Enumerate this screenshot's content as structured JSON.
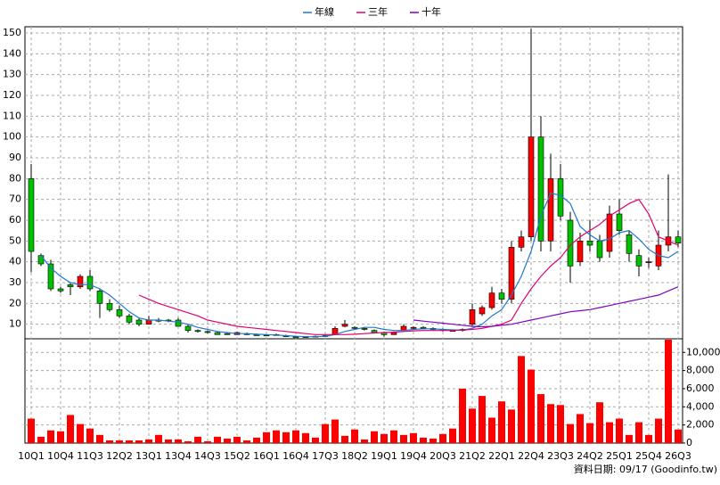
{
  "chart_data": [
    {
      "type": "candlestick",
      "categories": [
        "10Q1",
        null,
        null,
        "10Q4",
        null,
        null,
        "11Q3",
        null,
        null,
        "12Q2",
        null,
        null,
        "13Q1",
        null,
        null,
        "13Q4",
        null,
        null,
        "14Q3",
        null,
        null,
        "15Q2",
        null,
        null,
        "16Q1",
        null,
        null,
        "16Q4",
        null,
        null,
        "17Q3",
        null,
        null,
        "18Q2",
        null,
        null,
        "19Q1",
        null,
        null,
        "19Q4",
        null,
        null,
        "20Q3",
        null,
        null,
        "21Q2",
        null,
        null,
        "22Q1",
        null,
        null,
        "22Q4",
        null,
        null,
        "23Q3",
        null,
        null,
        "24Q2",
        null,
        null,
        "25Q1",
        null,
        null,
        "25Q4",
        null,
        null,
        "26Q3"
      ],
      "open": [
        80,
        43,
        39,
        27,
        29,
        28,
        33,
        26,
        20,
        17,
        14,
        12,
        10,
        12,
        12,
        12,
        9,
        7,
        6.5,
        6,
        5.5,
        5,
        5.5,
        5,
        4.8,
        5,
        4.5,
        4,
        4,
        4,
        4.2,
        5,
        9,
        8.5,
        8,
        7,
        6,
        5,
        7,
        8,
        8.5,
        8,
        7.5,
        7,
        7,
        10,
        15,
        18,
        25,
        22,
        47,
        52,
        100,
        50,
        80,
        60,
        40,
        50,
        50,
        45,
        63,
        53,
        43,
        40,
        38,
        48,
        52
      ],
      "high": [
        87,
        44,
        41,
        28,
        30,
        34,
        36,
        27,
        22,
        19,
        15,
        13,
        14,
        13,
        12.5,
        13,
        10,
        7.5,
        7,
        6.5,
        6,
        6.5,
        6,
        5.5,
        5,
        5.5,
        5,
        4.5,
        4.3,
        4.5,
        5,
        9,
        12,
        9,
        8.5,
        7.5,
        6.5,
        6.5,
        10,
        9,
        9,
        8.5,
        8,
        7.5,
        8,
        20,
        19,
        28,
        27,
        50,
        55,
        152,
        110,
        92,
        87,
        64,
        54,
        60,
        53,
        67,
        70,
        55,
        46,
        42,
        55,
        82,
        55
      ],
      "low": [
        35,
        38,
        26,
        25,
        24,
        27,
        26,
        13,
        16,
        13,
        10,
        9,
        10,
        11,
        11,
        9,
        6,
        6,
        5.5,
        5,
        5,
        5,
        4.8,
        4.5,
        4.3,
        4.5,
        3.8,
        3.3,
        3.5,
        3.8,
        4,
        5,
        8.5,
        7.5,
        7,
        5.5,
        4,
        5,
        6.5,
        7.5,
        7.5,
        7,
        6.5,
        6.5,
        6.5,
        9,
        14,
        17,
        20,
        20,
        45,
        50,
        45,
        45,
        60,
        30,
        38,
        45,
        40,
        42,
        53,
        40,
        33,
        37,
        36,
        45,
        47
      ],
      "close": [
        45,
        39,
        27,
        26,
        28,
        33,
        27,
        20,
        17,
        14,
        11,
        10,
        12,
        11.5,
        11.5,
        9,
        7,
        6.5,
        6,
        5,
        5,
        6,
        5,
        4.5,
        4.5,
        4.6,
        4,
        3.5,
        3.8,
        4.2,
        4.5,
        8,
        10,
        8,
        7.5,
        6,
        5,
        6,
        9,
        8.5,
        8,
        7.5,
        7,
        7,
        7.5,
        17,
        18,
        25,
        22,
        47,
        52,
        100,
        50,
        80,
        62,
        38,
        50,
        48,
        42,
        63,
        55,
        44,
        38,
        40,
        48,
        52,
        49
      ],
      "up_color": "#ff0000",
      "down_color": "#00c000",
      "series": [
        {
          "name": "年線",
          "color": "#1f78d1",
          "values": [
            null,
            43,
            37,
            33,
            30,
            29,
            29,
            27,
            24,
            20,
            16,
            13,
            12,
            12,
            11.5,
            11,
            10,
            8.5,
            7.5,
            6.5,
            6,
            5.5,
            5.5,
            5.2,
            5,
            4.8,
            4.5,
            4.2,
            4,
            4,
            4.2,
            5,
            6.5,
            7.5,
            8.5,
            8.5,
            7.5,
            7,
            7,
            7.5,
            7.8,
            7.8,
            7.5,
            7.3,
            7.2,
            8,
            10,
            14,
            17,
            24,
            33,
            45,
            62,
            73,
            72,
            68,
            57,
            53,
            50,
            51,
            54,
            55,
            51,
            46,
            43,
            42,
            45
          ]
        },
        {
          "name": "三年",
          "color": "#e0006e",
          "values": [
            null,
            null,
            null,
            null,
            null,
            null,
            null,
            null,
            null,
            null,
            null,
            24,
            22,
            20,
            18.5,
            17,
            15.5,
            14,
            12,
            11,
            10,
            9,
            8.5,
            8,
            7.5,
            7,
            6.5,
            6,
            5.5,
            5,
            5,
            5,
            5,
            5.2,
            5.5,
            5.8,
            6,
            6.2,
            6.5,
            6.8,
            7,
            7,
            7,
            7,
            7.2,
            7.5,
            8,
            9,
            10,
            12,
            20,
            27,
            33,
            38,
            42,
            48,
            52,
            55,
            58,
            62,
            65,
            68,
            70,
            63,
            52,
            50,
            48
          ]
        },
        {
          "name": "十年",
          "color": "#8000c0",
          "values": [
            null,
            null,
            null,
            null,
            null,
            null,
            null,
            null,
            null,
            null,
            null,
            null,
            null,
            null,
            null,
            null,
            null,
            null,
            null,
            null,
            null,
            null,
            null,
            null,
            null,
            null,
            null,
            null,
            null,
            null,
            null,
            null,
            null,
            null,
            null,
            null,
            null,
            null,
            null,
            12,
            11.5,
            11,
            10.5,
            10,
            9.5,
            9,
            8.8,
            9,
            9.5,
            10,
            11,
            12,
            13,
            14,
            15,
            16,
            16.5,
            17,
            18,
            19,
            20,
            21,
            22,
            23,
            24,
            26,
            28
          ]
        }
      ],
      "ylim": [
        3,
        153
      ],
      "yticks": [
        10,
        20,
        30,
        40,
        50,
        60,
        70,
        80,
        90,
        100,
        110,
        120,
        130,
        140,
        150
      ],
      "grid": true,
      "source": "資料日期: 09/17 (Goodinfo.tw)"
    },
    {
      "type": "bar",
      "color": "#ff0000",
      "values": [
        2700,
        700,
        1400,
        1300,
        3100,
        2100,
        1600,
        900,
        300,
        300,
        300,
        300,
        400,
        900,
        400,
        400,
        200,
        700,
        200,
        700,
        500,
        700,
        300,
        600,
        1200,
        1400,
        1200,
        1400,
        1100,
        600,
        2100,
        2600,
        800,
        1500,
        400,
        1300,
        1000,
        1400,
        900,
        1100,
        600,
        500,
        1000,
        1600,
        6000,
        3800,
        5200,
        2800,
        4600,
        3700,
        9600,
        8100,
        5400,
        4300,
        4200,
        2100,
        3200,
        2200,
        4500,
        2300,
        2700,
        900,
        2300,
        900,
        2700,
        11400,
        1500
      ],
      "ylim": [
        0,
        11500
      ],
      "yticks": [
        0,
        {
          "value": 2000,
          "label": "2,000"
        },
        {
          "value": 4000,
          "label": "4,000"
        },
        {
          "value": 6000,
          "label": "6,000"
        },
        {
          "value": 8000,
          "label": "8,000"
        },
        {
          "value": 10000,
          "label": "10,000"
        }
      ],
      "grid": true
    }
  ]
}
